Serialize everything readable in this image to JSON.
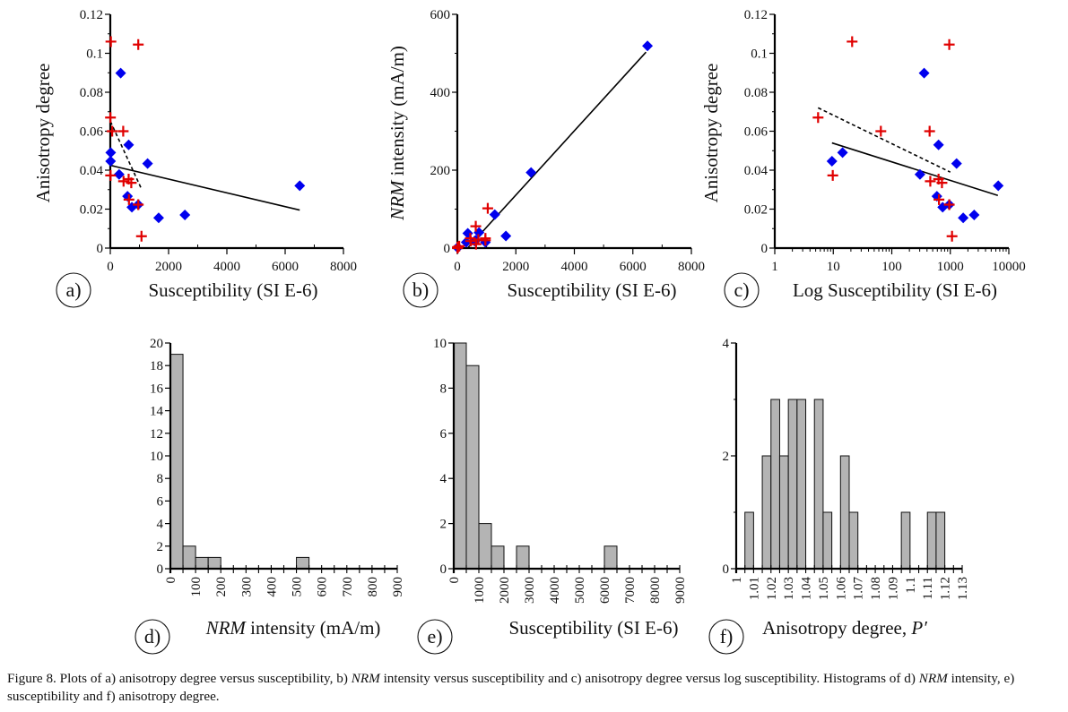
{
  "figure": {
    "caption_parts": [
      {
        "text": "Figure 8. Plots of a) anisotropy degree versus susceptibility, b) ",
        "italic": false
      },
      {
        "text": "NRM",
        "italic": true
      },
      {
        "text": " intensity versus susceptibility and c) anisotropy degree versus log susceptibility. Histograms of d) ",
        "italic": false
      },
      {
        "text": "NRM",
        "italic": true
      },
      {
        "text": " intensity, e) susceptibility and f) anisotropy degree.",
        "italic": false
      }
    ],
    "colors": {
      "series_blue": "#0000ee",
      "series_red": "#e00000",
      "bar_fill": "#b4b4b4",
      "axis": "#000000"
    }
  },
  "chart_data": [
    {
      "id": "a",
      "panel_label": "a)",
      "type": "scatter",
      "xlabel": "Susceptibility (SI E-6)",
      "ylabel": "Anisotropy degree",
      "xscale": "linear",
      "xlim": [
        0,
        8000
      ],
      "ylim": [
        0,
        0.12
      ],
      "xticks": [
        0,
        2000,
        4000,
        6000,
        8000
      ],
      "xtick_labels": [
        "0",
        "2000",
        "4000",
        "6000",
        "8000"
      ],
      "yticks": [
        0,
        0.02,
        0.04,
        0.06,
        0.08,
        0.1,
        0.12
      ],
      "ytick_labels": [
        "0",
        "0.02",
        "0.04",
        "0.06",
        "0.08",
        "0.1",
        "0.12"
      ],
      "series": [
        {
          "name": "blue",
          "marker": "diamond",
          "color": "#0000ee",
          "x": [
            9.5,
            14.4,
            303,
            357,
            590,
            630,
            740,
            960,
            1280,
            1660,
            2560,
            6500
          ],
          "y": [
            0.0446,
            0.049,
            0.0378,
            0.0898,
            0.0266,
            0.053,
            0.021,
            0.0223,
            0.0434,
            0.0155,
            0.017,
            0.032
          ],
          "trend": {
            "style": "solid",
            "x": [
              0,
              6500
            ],
            "y": [
              0.0425,
              0.0195
            ]
          }
        },
        {
          "name": "red",
          "marker": "plus",
          "color": "#e00000",
          "x": [
            5.5,
            9.8,
            21,
            65,
            443,
            455,
            630,
            640,
            720,
            960,
            960,
            1070
          ],
          "y": [
            0.067,
            0.0373,
            0.106,
            0.06,
            0.06,
            0.0343,
            0.0354,
            0.0249,
            0.0335,
            0.0223,
            0.1045,
            0.0061
          ],
          "trend": {
            "style": "dashed",
            "x": [
              5,
              1050
            ],
            "y": [
              0.065,
              0.031
            ]
          }
        }
      ]
    },
    {
      "id": "b",
      "panel_label": "b)",
      "type": "scatter",
      "xlabel": "Susceptibility (SI E-6)",
      "ylabel_italic": "NRM",
      "ylabel": " intensity (mA/m)",
      "xscale": "linear",
      "xlim": [
        0,
        8000
      ],
      "ylim": [
        0,
        600
      ],
      "xticks": [
        0,
        2000,
        4000,
        6000,
        8000
      ],
      "xtick_labels": [
        "0",
        "2000",
        "4000",
        "6000",
        "8000"
      ],
      "yticks": [
        0,
        200,
        400,
        600
      ],
      "ytick_labels": [
        "0",
        "200",
        "400",
        "600"
      ],
      "series": [
        {
          "name": "blue",
          "marker": "diamond",
          "color": "#0000ee",
          "x": [
            9.5,
            14.4,
            303,
            357,
            590,
            630,
            740,
            960,
            1280,
            1660,
            2520,
            6500
          ],
          "y": [
            1,
            2,
            15,
            38,
            18,
            20,
            40,
            15,
            86,
            31,
            194,
            519
          ],
          "trend": {
            "style": "solid",
            "x": [
              350,
              6450
            ],
            "y": [
              0,
              503
            ]
          }
        },
        {
          "name": "red",
          "marker": "plus",
          "color": "#e00000",
          "x": [
            5.5,
            9.8,
            21,
            65,
            443,
            455,
            630,
            640,
            720,
            960,
            960,
            1040
          ],
          "y": [
            2,
            0,
            3,
            5,
            25,
            18,
            56,
            10,
            22,
            25,
            20,
            102
          ]
        }
      ]
    },
    {
      "id": "c",
      "panel_label": "c)",
      "type": "scatter",
      "xlabel": "Log Susceptibility (SI E-6)",
      "ylabel": "Anisotropy degree",
      "xscale": "log",
      "xlim": [
        1,
        10000
      ],
      "ylim": [
        0,
        0.12
      ],
      "xticks": [
        1,
        10,
        100,
        1000,
        10000
      ],
      "xtick_labels": [
        "1",
        "10",
        "100",
        "1000",
        "10000"
      ],
      "yticks": [
        0,
        0.02,
        0.04,
        0.06,
        0.08,
        0.1,
        0.12
      ],
      "ytick_labels": [
        "0",
        "0.02",
        "0.04",
        "0.06",
        "0.08",
        "0.1",
        "0.12"
      ],
      "series": [
        {
          "name": "blue",
          "marker": "diamond",
          "color": "#0000ee",
          "x": [
            9.5,
            14.4,
            303,
            357,
            590,
            630,
            740,
            960,
            1280,
            1660,
            2560,
            6600
          ],
          "y": [
            0.0446,
            0.049,
            0.0378,
            0.0898,
            0.0266,
            0.053,
            0.021,
            0.0223,
            0.0434,
            0.0155,
            0.017,
            0.032
          ],
          "trend": {
            "style": "solid",
            "x": [
              9.5,
              6500
            ],
            "y": [
              0.054,
              0.027
            ]
          }
        },
        {
          "name": "red",
          "marker": "plus",
          "color": "#e00000",
          "x": [
            5.5,
            9.8,
            21,
            65,
            443,
            455,
            630,
            640,
            720,
            960,
            960,
            1070
          ],
          "y": [
            0.067,
            0.0373,
            0.106,
            0.06,
            0.06,
            0.0343,
            0.0354,
            0.0249,
            0.0335,
            0.0223,
            0.1045,
            0.0061
          ],
          "trend": {
            "style": "dashed",
            "x": [
              5.5,
              1000
            ],
            "y": [
              0.072,
              0.039
            ]
          }
        }
      ]
    },
    {
      "id": "d",
      "panel_label": "d)",
      "type": "bar",
      "histogram": true,
      "xlabel_italic": "NRM",
      "xlabel": " intensity (mA/m)",
      "ylabel": "",
      "xlim": [
        0,
        900
      ],
      "ylim": [
        0,
        20
      ],
      "bin_width": 50,
      "bins": [
        [
          0,
          50
        ],
        [
          50,
          100
        ],
        [
          100,
          150
        ],
        [
          150,
          200
        ],
        [
          500,
          550
        ]
      ],
      "values": [
        19,
        2,
        1,
        1,
        1
      ],
      "xticks": [
        0,
        100,
        200,
        300,
        400,
        500,
        600,
        700,
        800,
        900
      ],
      "xtick_labels": [
        "0",
        "100",
        "200",
        "300",
        "400",
        "500",
        "600",
        "700",
        "800",
        "900"
      ],
      "xminor": 50,
      "yticks": [
        0,
        2,
        4,
        6,
        8,
        10,
        12,
        14,
        16,
        18,
        20
      ],
      "ytick_labels": [
        "0",
        "2",
        "4",
        "6",
        "8",
        "10",
        "12",
        "14",
        "16",
        "18",
        "20"
      ]
    },
    {
      "id": "e",
      "panel_label": "e)",
      "type": "bar",
      "histogram": true,
      "xlabel": "Susceptibility (SI E-6)",
      "ylabel": "",
      "xlim": [
        0,
        9000
      ],
      "ylim": [
        0,
        10
      ],
      "bin_width": 500,
      "bins": [
        [
          0,
          500
        ],
        [
          500,
          1000
        ],
        [
          1000,
          1500
        ],
        [
          1500,
          2000
        ],
        [
          2500,
          3000
        ],
        [
          6000,
          6500
        ]
      ],
      "values": [
        10,
        9,
        2,
        1,
        1,
        1
      ],
      "xticks": [
        0,
        1000,
        2000,
        3000,
        4000,
        5000,
        6000,
        7000,
        8000,
        9000
      ],
      "xtick_labels": [
        "0",
        "1000",
        "2000",
        "3000",
        "4000",
        "5000",
        "6000",
        "7000",
        "8000",
        "9000"
      ],
      "xminor": 500,
      "yticks": [
        0,
        2,
        4,
        6,
        8,
        10
      ],
      "ytick_labels": [
        "0",
        "2",
        "4",
        "6",
        "8",
        "10"
      ]
    },
    {
      "id": "f",
      "panel_label": "f)",
      "type": "bar",
      "histogram": true,
      "xlabel": "Anisotropy degree, ",
      "xlabel_italic_suffix": "P′",
      "ylabel": "",
      "xlim": [
        1,
        1.13
      ],
      "ylim": [
        0,
        4
      ],
      "bin_width": 0.005,
      "bins": [
        [
          1.005,
          1.01
        ],
        [
          1.015,
          1.02
        ],
        [
          1.02,
          1.025
        ],
        [
          1.025,
          1.03
        ],
        [
          1.03,
          1.035
        ],
        [
          1.035,
          1.04
        ],
        [
          1.045,
          1.05
        ],
        [
          1.05,
          1.055
        ],
        [
          1.06,
          1.065
        ],
        [
          1.065,
          1.07
        ],
        [
          1.095,
          1.1
        ],
        [
          1.11,
          1.115
        ],
        [
          1.115,
          1.12
        ]
      ],
      "values": [
        1,
        2,
        3,
        2,
        3,
        3,
        3,
        1,
        2,
        1,
        1,
        1,
        1
      ],
      "xticks": [
        1,
        1.01,
        1.02,
        1.03,
        1.04,
        1.05,
        1.06,
        1.07,
        1.08,
        1.09,
        1.1,
        1.11,
        1.12,
        1.13
      ],
      "xtick_labels": [
        "1",
        "1.01",
        "1.02",
        "1.03",
        "1.04",
        "1.05",
        "1.06",
        "1.07",
        "1.08",
        "1.09",
        "1.1",
        "1.11",
        "1.12",
        "1.13"
      ],
      "xminor": 0.005,
      "yticks": [
        0,
        2,
        4
      ],
      "ytick_labels": [
        "0",
        "2",
        "4"
      ],
      "yminor": 1
    }
  ]
}
